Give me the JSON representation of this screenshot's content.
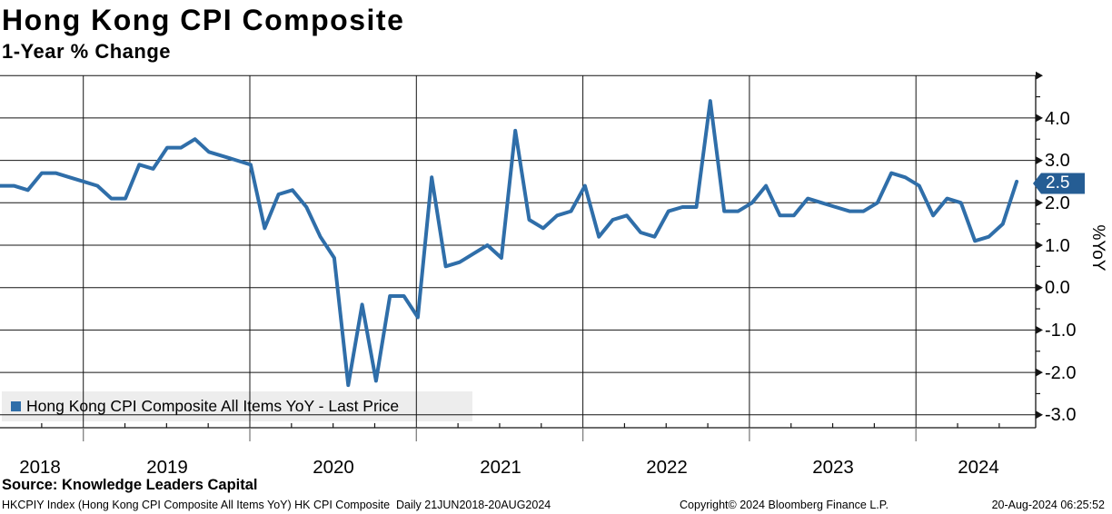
{
  "title": "Hong Kong CPI Composite",
  "subtitle": "1-Year % Change",
  "source_line": "Source: Knowledge Leaders Capital",
  "footer": {
    "left": "HKCPIY Index (Hong Kong CPI Composite All Items YoY) HK CPI Composite  Daily 21JUN2018-20AUG2024",
    "center": "Copyright© 2024 Bloomberg Finance L.P.",
    "right": "20-Aug-2024 06:25:52"
  },
  "legend": {
    "label": "Hong Kong CPI Composite All Items YoY - Last Price",
    "marker_icon": "blue-square-icon",
    "marker_color": "#2f6ea9"
  },
  "last_price": {
    "value": "2.5",
    "box_color": "#255d94",
    "text_color": "#ffffff"
  },
  "colors": {
    "line": "#2f6ea9",
    "grid": "#141414",
    "axis": "#141414",
    "legend_bg": "#ededed",
    "minor_tick_below_axis": "#7f7f7f"
  },
  "y_axis": {
    "title": "%YoY",
    "tick_labels": [
      "4.0",
      "3.0",
      "2.0",
      "1.0",
      "0.0",
      "-1.0",
      "-2.0",
      "-3.0"
    ],
    "tick_values": [
      4,
      3,
      2,
      1,
      0,
      -1,
      -2,
      -3
    ],
    "minor_step": 0.5,
    "range": [
      -3.3,
      5.0
    ]
  },
  "x_axis": {
    "tick_labels": [
      "2018",
      "2019",
      "2020",
      "2021",
      "2022",
      "2023",
      "2024"
    ]
  },
  "chart_data": {
    "type": "line",
    "title": "Hong Kong CPI Composite",
    "subtitle": "1-Year % Change",
    "ylabel": "%YoY",
    "ylim": [
      -3.3,
      5.0
    ],
    "grid": true,
    "legend_position": "bottom-left",
    "x_range_label": "Daily 21JUN2018-20AUG2024",
    "x": [
      "2018-06",
      "2018-07",
      "2018-08",
      "2018-09",
      "2018-10",
      "2018-11",
      "2018-12",
      "2019-01",
      "2019-02",
      "2019-03",
      "2019-04",
      "2019-05",
      "2019-06",
      "2019-07",
      "2019-08",
      "2019-09",
      "2019-10",
      "2019-11",
      "2019-12",
      "2020-01",
      "2020-02",
      "2020-03",
      "2020-04",
      "2020-05",
      "2020-06",
      "2020-07",
      "2020-08",
      "2020-09",
      "2020-10",
      "2020-11",
      "2020-12",
      "2021-01",
      "2021-02",
      "2021-03",
      "2021-04",
      "2021-05",
      "2021-06",
      "2021-07",
      "2021-08",
      "2021-09",
      "2021-10",
      "2021-11",
      "2021-12",
      "2022-01",
      "2022-02",
      "2022-03",
      "2022-04",
      "2022-05",
      "2022-06",
      "2022-07",
      "2022-08",
      "2022-09",
      "2022-10",
      "2022-11",
      "2022-12",
      "2023-01",
      "2023-02",
      "2023-03",
      "2023-04",
      "2023-05",
      "2023-06",
      "2023-07",
      "2023-08",
      "2023-09",
      "2023-10",
      "2023-11",
      "2023-12",
      "2024-01",
      "2024-02",
      "2024-03",
      "2024-04",
      "2024-05",
      "2024-06",
      "2024-07"
    ],
    "series": [
      {
        "name": "Hong Kong CPI Composite All Items YoY - Last Price",
        "color": "#2f6ea9",
        "values": [
          2.4,
          2.4,
          2.3,
          2.7,
          2.7,
          2.6,
          2.5,
          2.4,
          2.1,
          2.1,
          2.9,
          2.8,
          3.3,
          3.3,
          3.5,
          3.2,
          3.1,
          3.0,
          2.9,
          1.4,
          2.2,
          2.3,
          1.9,
          1.2,
          0.7,
          -2.3,
          -0.4,
          -2.2,
          -0.2,
          -0.2,
          -0.7,
          2.6,
          0.5,
          0.6,
          0.8,
          1.0,
          0.7,
          3.7,
          1.6,
          1.4,
          1.7,
          1.8,
          2.4,
          1.2,
          1.6,
          1.7,
          1.3,
          1.2,
          1.8,
          1.9,
          1.9,
          4.4,
          1.8,
          1.8,
          2.0,
          2.4,
          1.7,
          1.7,
          2.1,
          2.0,
          1.9,
          1.8,
          1.8,
          2.0,
          2.7,
          2.6,
          2.4,
          1.7,
          2.1,
          2.0,
          1.1,
          1.2,
          1.5,
          2.5
        ]
      }
    ],
    "last_value": 2.5
  }
}
